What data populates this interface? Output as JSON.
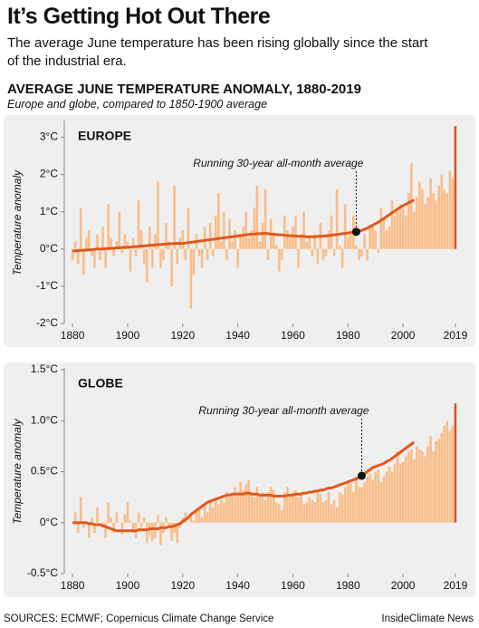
{
  "title": "It’s Getting Hot Out There",
  "subtitle": "The average June temperature has been rising globally since the start of the industrial era.",
  "chart_title": "AVERAGE JUNE TEMPERATURE ANOMALY, 1880-2019",
  "chart_subtitle": "Europe and globe, compared to 1850-1900 average",
  "source": "SOURCES: ECMWF; Copernicus Climate Change Service",
  "credit": "InsideClimate News",
  "chart_data": [
    {
      "type": "bar",
      "label": "EUROPE",
      "ylabel": "Temperature anomaly",
      "color": "#f9bd88",
      "highlight_color": "#d9531e",
      "xlim": [
        1877,
        2021
      ],
      "xticks": [
        1880,
        1900,
        1920,
        1940,
        1960,
        1980,
        2000,
        2019
      ],
      "ylim": [
        -2,
        3.4
      ],
      "yticks": [
        {
          "value": -2,
          "label": "-2°C"
        },
        {
          "value": -1,
          "label": "-1°C"
        },
        {
          "value": 0,
          "label": "0°C"
        },
        {
          "value": 1,
          "label": "1°C"
        },
        {
          "value": 2,
          "label": "2°C"
        },
        {
          "value": 3,
          "label": "3°C"
        }
      ],
      "x": [
        1880,
        1881,
        1882,
        1883,
        1884,
        1885,
        1886,
        1887,
        1888,
        1889,
        1890,
        1891,
        1892,
        1893,
        1894,
        1895,
        1896,
        1897,
        1898,
        1899,
        1900,
        1901,
        1902,
        1903,
        1904,
        1905,
        1906,
        1907,
        1908,
        1909,
        1910,
        1911,
        1912,
        1913,
        1914,
        1915,
        1916,
        1917,
        1918,
        1919,
        1920,
        1921,
        1922,
        1923,
        1924,
        1925,
        1926,
        1927,
        1928,
        1929,
        1930,
        1931,
        1932,
        1933,
        1934,
        1935,
        1936,
        1937,
        1938,
        1939,
        1940,
        1941,
        1942,
        1943,
        1944,
        1945,
        1946,
        1947,
        1948,
        1949,
        1950,
        1951,
        1952,
        1953,
        1954,
        1955,
        1956,
        1957,
        1958,
        1959,
        1960,
        1961,
        1962,
        1963,
        1964,
        1965,
        1966,
        1967,
        1968,
        1969,
        1970,
        1971,
        1972,
        1973,
        1974,
        1975,
        1976,
        1977,
        1978,
        1979,
        1980,
        1981,
        1982,
        1983,
        1984,
        1985,
        1986,
        1987,
        1988,
        1989,
        1990,
        1991,
        1992,
        1993,
        1994,
        1995,
        1996,
        1997,
        1998,
        1999,
        2000,
        2001,
        2002,
        2003,
        2004,
        2005,
        2006,
        2007,
        2008,
        2009,
        2010,
        2011,
        2012,
        2013,
        2014,
        2015,
        2016,
        2017,
        2018,
        2019
      ],
      "values": [
        -0.3,
        0.2,
        -0.4,
        1.1,
        -0.7,
        0.3,
        0.5,
        -0.2,
        -0.5,
        0.4,
        -0.3,
        0.6,
        -0.5,
        1.2,
        0.3,
        -0.2,
        0.2,
        1.0,
        -0.1,
        0.4,
        0.2,
        -0.6,
        0.3,
        -0.2,
        1.3,
        0.5,
        -0.4,
        -0.9,
        0.6,
        -0.5,
        0.4,
        1.8,
        -0.5,
        -0.3,
        0.7,
        0.2,
        -1.0,
        1.7,
        -0.4,
        0.3,
        0.5,
        -0.3,
        1.1,
        -1.6,
        -0.7,
        0.4,
        -0.2,
        -0.5,
        0.6,
        -0.3,
        0.7,
        -0.2,
        0.9,
        1.5,
        0.2,
        1.0,
        -0.3,
        0.8,
        0.2,
        0.5,
        -0.5,
        0.4,
        0.6,
        1.0,
        0.3,
        0.5,
        1.1,
        1.7,
        0.2,
        0.7,
        1.6,
        -0.3,
        0.8,
        0.4,
        0.1,
        -0.6,
        -0.3,
        0.9,
        0.5,
        0.3,
        0.6,
        0.9,
        -0.5,
        0.4,
        1.0,
        0.2,
        0.3,
        -0.2,
        0.4,
        -0.4,
        0.7,
        -0.3,
        -0.2,
        0.5,
        0.9,
        -0.2,
        1.6,
        0.1,
        -0.5,
        1.2,
        0.3,
        0.5,
        0.9,
        0.1,
        -0.3,
        -0.2,
        0.4,
        -0.3,
        0.6,
        0.6,
        0.5,
        -0.1,
        1.1,
        0.8,
        0.5,
        0.6,
        1.3,
        0.9,
        1.0,
        1.2,
        1.1,
        0.9,
        1.5,
        2.3,
        1.0,
        1.4,
        1.8,
        1.6,
        1.2,
        1.4,
        1.9,
        1.5,
        1.3,
        1.7,
        2.0,
        1.6,
        1.5,
        2.1,
        1.9,
        3.3
      ],
      "average": {
        "color": "#e2581c",
        "values": [
          -0.05,
          -0.05,
          -0.04,
          -0.04,
          -0.03,
          -0.03,
          -0.02,
          -0.02,
          -0.01,
          0.0,
          0.0,
          0.0,
          0.01,
          0.01,
          0.02,
          0.02,
          0.03,
          0.03,
          0.04,
          0.04,
          0.05,
          0.05,
          0.06,
          0.06,
          0.07,
          0.08,
          0.08,
          0.09,
          0.1,
          0.1,
          0.11,
          0.12,
          0.12,
          0.13,
          0.13,
          0.14,
          0.14,
          0.15,
          0.15,
          0.15,
          0.15,
          0.16,
          0.17,
          0.18,
          0.19,
          0.2,
          0.21,
          0.22,
          0.23,
          0.24,
          0.25,
          0.26,
          0.27,
          0.28,
          0.29,
          0.3,
          0.31,
          0.32,
          0.33,
          0.34,
          0.35,
          0.36,
          0.37,
          0.38,
          0.39,
          0.4,
          0.4,
          0.41,
          0.41,
          0.42,
          0.42,
          0.41,
          0.4,
          0.4,
          0.39,
          0.38,
          0.38,
          0.37,
          0.36,
          0.36,
          0.35,
          0.35,
          0.34,
          0.34,
          0.34,
          0.33,
          0.33,
          0.33,
          0.33,
          0.34,
          0.34,
          0.35,
          0.35,
          0.36,
          0.37,
          0.38,
          0.39,
          0.4,
          0.41,
          0.42,
          0.43,
          0.44,
          0.45,
          0.46,
          0.48,
          0.5,
          0.53,
          0.56,
          0.6,
          0.64,
          0.68,
          0.72,
          0.77,
          0.82,
          0.87,
          0.92,
          0.97,
          1.02,
          1.07,
          1.12,
          1.16,
          1.2,
          1.24,
          1.28,
          1.32,
          null,
          null,
          null,
          null,
          null,
          null,
          null,
          null,
          null,
          null,
          null,
          null,
          null,
          null,
          null
        ]
      },
      "annotation": {
        "text": "Running 30-year all-month average",
        "x": 1983,
        "y": 0.46
      }
    },
    {
      "type": "bar",
      "label": "GLOBE",
      "ylabel": "Temperature anomaly",
      "color": "#f9bd88",
      "highlight_color": "#d9531e",
      "xlim": [
        1877,
        2021
      ],
      "xticks": [
        1880,
        1900,
        1920,
        1940,
        1960,
        1980,
        2000,
        2019
      ],
      "ylim": [
        -0.5,
        1.5
      ],
      "yticks": [
        {
          "value": -0.5,
          "label": "-0.5°C"
        },
        {
          "value": 0,
          "label": "0°C"
        },
        {
          "value": 0.5,
          "label": "0.5°C"
        },
        {
          "value": 1,
          "label": "1.0°C"
        },
        {
          "value": 1.5,
          "label": "1.5°C"
        }
      ],
      "x": [
        1880,
        1881,
        1882,
        1883,
        1884,
        1885,
        1886,
        1887,
        1888,
        1889,
        1890,
        1891,
        1892,
        1893,
        1894,
        1895,
        1896,
        1897,
        1898,
        1899,
        1900,
        1901,
        1902,
        1903,
        1904,
        1905,
        1906,
        1907,
        1908,
        1909,
        1910,
        1911,
        1912,
        1913,
        1914,
        1915,
        1916,
        1917,
        1918,
        1919,
        1920,
        1921,
        1922,
        1923,
        1924,
        1925,
        1926,
        1927,
        1928,
        1929,
        1930,
        1931,
        1932,
        1933,
        1934,
        1935,
        1936,
        1937,
        1938,
        1939,
        1940,
        1941,
        1942,
        1943,
        1944,
        1945,
        1946,
        1947,
        1948,
        1949,
        1950,
        1951,
        1952,
        1953,
        1954,
        1955,
        1956,
        1957,
        1958,
        1959,
        1960,
        1961,
        1962,
        1963,
        1964,
        1965,
        1966,
        1967,
        1968,
        1969,
        1970,
        1971,
        1972,
        1973,
        1974,
        1975,
        1976,
        1977,
        1978,
        1979,
        1980,
        1981,
        1982,
        1983,
        1984,
        1985,
        1986,
        1987,
        1988,
        1989,
        1990,
        1991,
        1992,
        1993,
        1994,
        1995,
        1996,
        1997,
        1998,
        1999,
        2000,
        2001,
        2002,
        2003,
        2004,
        2005,
        2006,
        2007,
        2008,
        2009,
        2010,
        2011,
        2012,
        2013,
        2014,
        2015,
        2016,
        2017,
        2018,
        2019
      ],
      "values": [
        0.0,
        0.1,
        -0.1,
        0.25,
        -0.05,
        0.0,
        -0.15,
        0.05,
        -0.1,
        0.15,
        0.0,
        -0.05,
        -0.15,
        0.2,
        0.05,
        -0.1,
        0.1,
        0.0,
        -0.12,
        0.08,
        0.2,
        0.02,
        -0.1,
        -0.15,
        0.1,
        -0.05,
        0.05,
        -0.2,
        -0.12,
        -0.18,
        -0.15,
        0.08,
        -0.22,
        -0.1,
        0.05,
        -0.05,
        -0.18,
        -0.1,
        -0.2,
        -0.05,
        0.05,
        0.1,
        0.0,
        0.08,
        0.02,
        0.12,
        0.15,
        0.05,
        0.18,
        0.1,
        0.2,
        0.15,
        0.25,
        0.18,
        0.22,
        0.2,
        0.3,
        0.25,
        0.28,
        0.35,
        0.3,
        0.4,
        0.32,
        0.38,
        0.42,
        0.3,
        0.25,
        0.35,
        0.28,
        0.3,
        0.22,
        0.3,
        0.35,
        0.32,
        0.2,
        0.18,
        0.12,
        0.3,
        0.35,
        0.28,
        0.3,
        0.32,
        0.25,
        0.3,
        0.18,
        0.2,
        0.25,
        0.22,
        0.2,
        0.3,
        0.28,
        0.2,
        0.22,
        0.3,
        0.18,
        0.22,
        0.15,
        0.3,
        0.28,
        0.35,
        0.4,
        0.38,
        0.3,
        0.45,
        0.35,
        0.35,
        0.4,
        0.45,
        0.48,
        0.42,
        0.5,
        0.52,
        0.4,
        0.45,
        0.5,
        0.55,
        0.5,
        0.58,
        0.7,
        0.58,
        0.6,
        0.65,
        0.7,
        0.72,
        0.62,
        0.75,
        0.72,
        0.7,
        0.65,
        0.75,
        0.85,
        0.7,
        0.8,
        0.82,
        0.88,
        0.95,
        1.0,
        0.9,
        0.95,
        1.17
      ],
      "average": {
        "color": "#e2581c",
        "values": [
          0.0,
          0.0,
          0.0,
          0.0,
          0.0,
          0.0,
          -0.01,
          -0.01,
          -0.02,
          -0.02,
          -0.02,
          -0.03,
          -0.04,
          -0.05,
          -0.06,
          -0.07,
          -0.08,
          -0.08,
          -0.08,
          -0.08,
          -0.08,
          -0.08,
          -0.08,
          -0.08,
          -0.07,
          -0.07,
          -0.07,
          -0.07,
          -0.06,
          -0.06,
          -0.06,
          -0.06,
          -0.05,
          -0.05,
          -0.05,
          -0.04,
          -0.04,
          -0.03,
          -0.02,
          -0.01,
          0.01,
          0.03,
          0.05,
          0.08,
          0.1,
          0.12,
          0.14,
          0.16,
          0.18,
          0.2,
          0.21,
          0.22,
          0.23,
          0.24,
          0.25,
          0.26,
          0.27,
          0.27,
          0.28,
          0.28,
          0.28,
          0.28,
          0.28,
          0.29,
          0.29,
          0.28,
          0.28,
          0.28,
          0.27,
          0.27,
          0.27,
          0.27,
          0.27,
          0.26,
          0.26,
          0.26,
          0.26,
          0.26,
          0.27,
          0.27,
          0.27,
          0.28,
          0.28,
          0.28,
          0.29,
          0.29,
          0.3,
          0.3,
          0.31,
          0.31,
          0.32,
          0.32,
          0.33,
          0.34,
          0.34,
          0.35,
          0.36,
          0.37,
          0.38,
          0.39,
          0.4,
          0.41,
          0.42,
          0.43,
          0.44,
          0.46,
          0.48,
          0.5,
          0.52,
          0.54,
          0.55,
          0.56,
          0.57,
          0.58,
          0.6,
          0.61,
          0.63,
          0.65,
          0.67,
          0.69,
          0.71,
          0.73,
          0.75,
          0.77,
          0.79,
          null,
          null,
          null,
          null,
          null,
          null,
          null,
          null,
          null,
          null,
          null,
          null,
          null,
          null,
          null
        ]
      },
      "annotation": {
        "text": "Running 30-year all-month average",
        "x": 1985,
        "y": 0.46
      }
    }
  ]
}
